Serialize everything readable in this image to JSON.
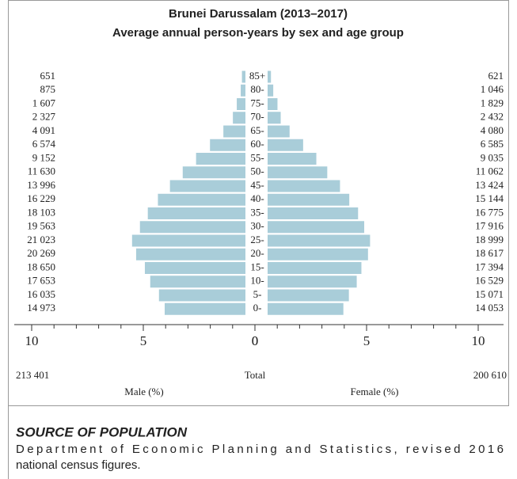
{
  "chart_data": {
    "type": "population_pyramid",
    "title": "Brunei Darussalam (2013–2017)",
    "subtitle": "Average annual person-years by sex and age group",
    "categories": [
      "85+",
      "80-",
      "75-",
      "70-",
      "65-",
      "60-",
      "55-",
      "50-",
      "45-",
      "40-",
      "35-",
      "30-",
      "25-",
      "20-",
      "15-",
      "10-",
      "5-",
      "0-"
    ],
    "series": [
      {
        "name": "Male (%)",
        "color": "#a9cdd9",
        "side": "left",
        "values": [
          0.157,
          0.211,
          0.388,
          0.562,
          0.988,
          1.588,
          2.211,
          2.809,
          3.381,
          3.92,
          4.373,
          4.725,
          5.078,
          4.896,
          4.505,
          4.264,
          3.873,
          3.617
        ],
        "counts": [
          651,
          875,
          1607,
          2327,
          4091,
          6574,
          9152,
          11630,
          13996,
          16229,
          18103,
          19563,
          21023,
          20269,
          18650,
          17653,
          16035,
          14973
        ],
        "count_labels": [
          "651",
          "875",
          "1 607",
          "2 327",
          "4 091",
          "6 574",
          "9 152",
          "11 630",
          "13 996",
          "16 229",
          "18 103",
          "19 563",
          "21 023",
          "20 269",
          "18 650",
          "17 653",
          "16 035",
          "14 973"
        ],
        "total": 213401,
        "total_label": "213 401"
      },
      {
        "name": "Female (%)",
        "color": "#a9cdd9",
        "side": "right",
        "values": [
          0.15,
          0.253,
          0.442,
          0.587,
          0.985,
          1.591,
          2.182,
          2.672,
          3.242,
          3.658,
          4.052,
          4.327,
          4.589,
          4.497,
          4.201,
          3.992,
          3.64,
          3.394
        ],
        "counts": [
          621,
          1046,
          1829,
          2432,
          4080,
          6585,
          9035,
          11062,
          13424,
          15144,
          16775,
          17916,
          18999,
          18617,
          17394,
          16529,
          15071,
          14053
        ],
        "count_labels": [
          "621",
          "1 046",
          "1 829",
          "2 432",
          "4 080",
          "6 585",
          "9 035",
          "11 062",
          "13 424",
          "15 144",
          "16 775",
          "17 916",
          "18 999",
          "18 617",
          "17 394",
          "16 529",
          "15 071",
          "14 053"
        ],
        "total": 200610,
        "total_label": "200 610"
      }
    ],
    "total_text": "Total",
    "xlim": [
      0,
      10
    ],
    "xticks": [
      0,
      5,
      10
    ],
    "minor_xticks": [
      1,
      2,
      3,
      4,
      6,
      7,
      8,
      9
    ]
  },
  "source": {
    "heading": "SOURCE OF POPULATION",
    "lines": [
      "Department of Economic Planning and Statistics, revised 2016",
      "national census figures."
    ]
  }
}
